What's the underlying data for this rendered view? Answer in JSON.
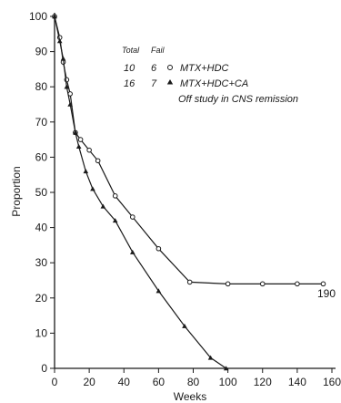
{
  "chart_data": {
    "type": "line",
    "xlabel": "Weeks",
    "ylabel": "Proportion",
    "xlim": [
      0,
      160
    ],
    "ylim": [
      0,
      100
    ],
    "x_ticks": [
      "0",
      "20",
      "40",
      "60",
      "80",
      "100",
      "120",
      "140",
      "160"
    ],
    "y_ticks": [
      "0",
      "10",
      "20",
      "30",
      "40",
      "50",
      "60",
      "70",
      "80",
      "90",
      "100"
    ],
    "grid": false,
    "legend": {
      "placement": "top-right",
      "header_total": "Total",
      "header_fail": "Fail",
      "note": "Off study in CNS remission"
    },
    "series": [
      {
        "name": "MTX+HDC",
        "total": "10",
        "fail": "6",
        "marker": "open-circle",
        "x": [
          0,
          3,
          5,
          7,
          9,
          12,
          15,
          20,
          25,
          35,
          45,
          60,
          78,
          100,
          120,
          140,
          155
        ],
        "y": [
          100,
          94,
          87,
          82,
          78,
          67,
          65,
          62,
          59,
          49,
          43,
          34,
          24.5,
          24,
          24,
          24,
          24
        ]
      },
      {
        "name": "MTX+HDC+CA",
        "total": "16",
        "fail": "7",
        "marker": "filled-triangle",
        "x": [
          0,
          3,
          5,
          7,
          9,
          12,
          14,
          18,
          22,
          28,
          35,
          45,
          60,
          75,
          90,
          99
        ],
        "y": [
          100,
          93,
          88,
          80,
          75,
          67,
          63,
          56,
          51,
          46,
          42,
          33,
          22,
          12,
          3,
          0
        ]
      }
    ],
    "annotations": [
      "190"
    ]
  },
  "colors": {
    "ink": "#1a1a1a",
    "background": "#ffffff"
  }
}
